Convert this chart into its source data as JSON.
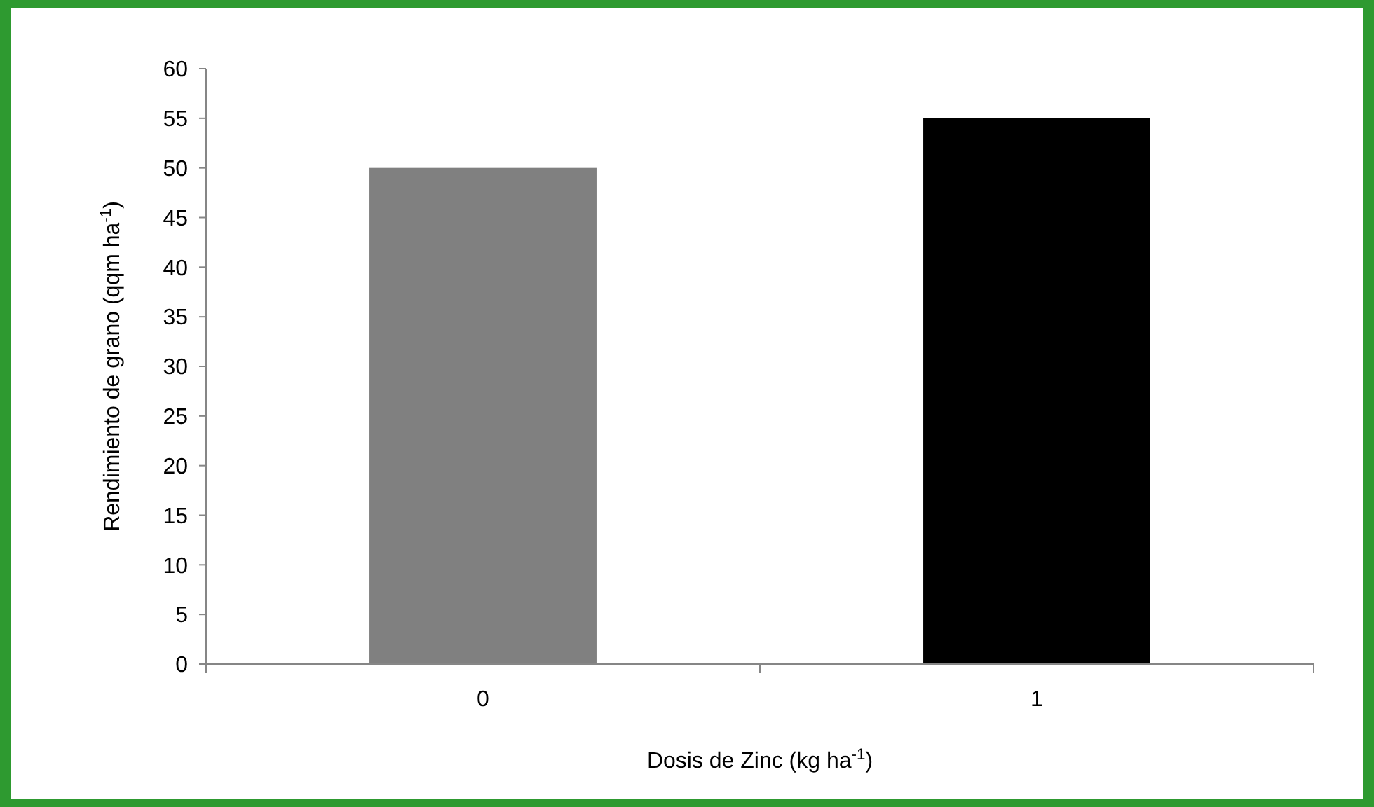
{
  "chart_data": {
    "type": "bar",
    "xlabel": "Dosis de Zinc (kg ha$^{-1}$)",
    "ylabel": "Rendimiento de grano (qqm ha$^{-1}$)",
    "categories": [
      "0",
      "1"
    ],
    "values": [
      50,
      55
    ],
    "colors": [
      "#808080",
      "#000000"
    ],
    "ylim": [
      0,
      60
    ],
    "yticks": [
      0,
      5,
      10,
      15,
      20,
      25,
      30,
      35,
      40,
      45,
      50,
      55,
      60
    ],
    "grid": false
  }
}
